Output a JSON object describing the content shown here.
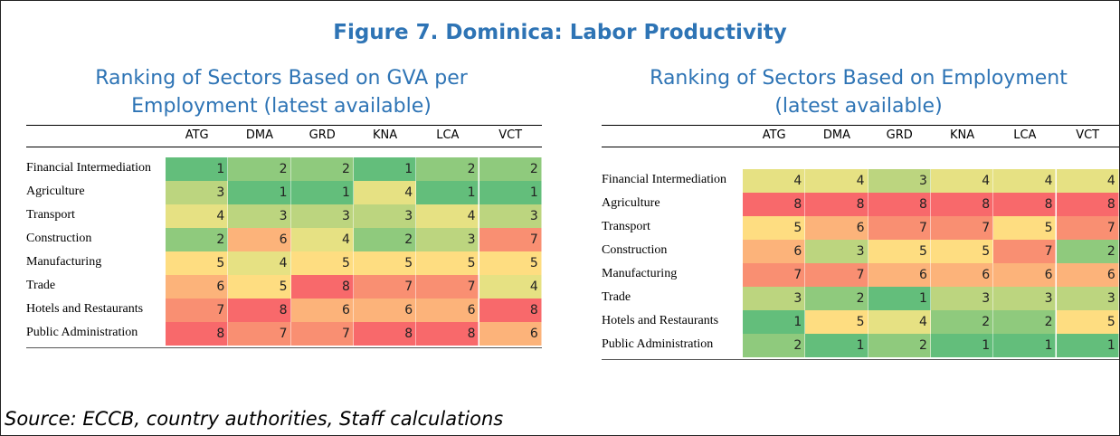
{
  "title": "Figure 7. Dominica: Labor Productivity",
  "color_scale": [
    "#63be7b",
    "#8fca7d",
    "#bcd57f",
    "#e6e183",
    "#fedd81",
    "#fcb37a",
    "#f98f72",
    "#f8696b"
  ],
  "tables": [
    {
      "subtitle_lines": [
        "Ranking of Sectors Based on GVA per",
        "Employment (latest available)"
      ],
      "columns": [
        "ATG",
        "DMA",
        "GRD",
        "KNA",
        "LCA",
        "VCT"
      ],
      "rows": [
        {
          "label": "Financial Intermediation",
          "values": [
            1,
            2,
            2,
            1,
            2,
            2
          ]
        },
        {
          "label": "Agriculture",
          "values": [
            3,
            1,
            1,
            4,
            1,
            1
          ]
        },
        {
          "label": "Transport",
          "values": [
            4,
            3,
            3,
            3,
            4,
            3
          ]
        },
        {
          "label": "Construction",
          "values": [
            2,
            6,
            4,
            2,
            3,
            7
          ]
        },
        {
          "label": "Manufacturing",
          "values": [
            5,
            4,
            5,
            5,
            5,
            5
          ]
        },
        {
          "label": "Trade",
          "values": [
            6,
            5,
            8,
            7,
            7,
            4
          ]
        },
        {
          "label": "Hotels and Restaurants",
          "values": [
            7,
            8,
            6,
            6,
            6,
            8
          ]
        },
        {
          "label": "Public Administration",
          "values": [
            8,
            7,
            7,
            8,
            8,
            6
          ]
        }
      ]
    },
    {
      "subtitle_lines": [
        "Ranking of Sectors Based on Employment",
        "(latest available)"
      ],
      "columns": [
        "ATG",
        "DMA",
        "GRD",
        "KNA",
        "LCA",
        "VCT"
      ],
      "rows": [
        {
          "label": "Financial Intermediation",
          "values": [
            4,
            4,
            3,
            4,
            4,
            4
          ]
        },
        {
          "label": "Agriculture",
          "values": [
            8,
            8,
            8,
            8,
            8,
            8
          ]
        },
        {
          "label": "Transport",
          "values": [
            5,
            6,
            7,
            7,
            5,
            7
          ]
        },
        {
          "label": "Construction",
          "values": [
            6,
            3,
            5,
            5,
            7,
            2
          ]
        },
        {
          "label": "Manufacturing",
          "values": [
            7,
            7,
            6,
            6,
            6,
            6
          ]
        },
        {
          "label": "Trade",
          "values": [
            3,
            2,
            1,
            3,
            3,
            3
          ]
        },
        {
          "label": "Hotels and Restaurants",
          "values": [
            1,
            5,
            4,
            2,
            2,
            5
          ]
        },
        {
          "label": "Public Administration",
          "values": [
            2,
            1,
            2,
            1,
            1,
            1
          ]
        }
      ]
    }
  ],
  "source": "Source: ECCB, country authorities, Staff calculations"
}
